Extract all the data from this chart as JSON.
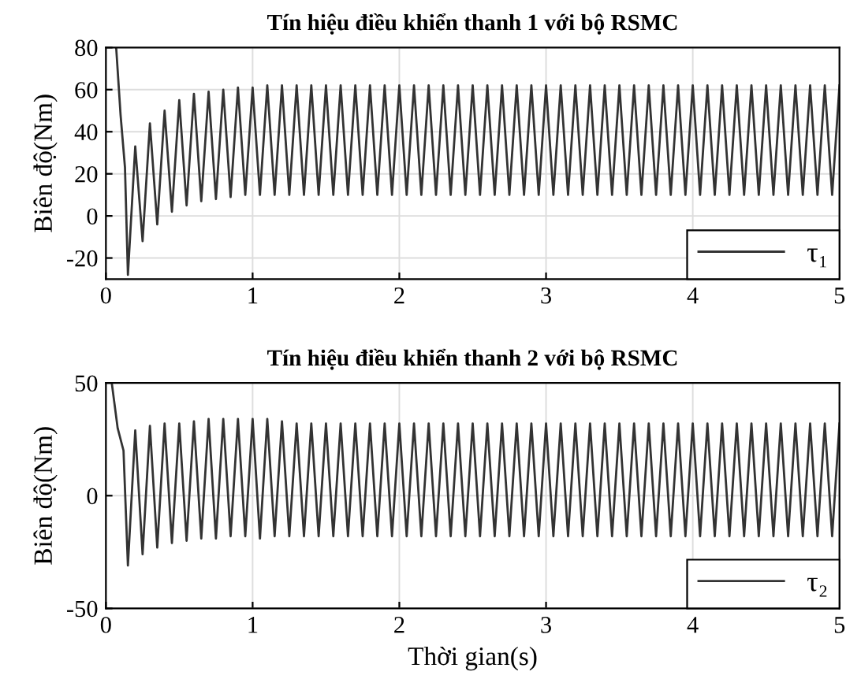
{
  "chart_data": [
    {
      "type": "line",
      "title": "Tín hiệu điều khiển thanh 1 với bộ RSMC",
      "ylabel": "Biên độ(Nm)",
      "xlim": [
        0,
        5
      ],
      "xticks": [
        0,
        1,
        2,
        3,
        4,
        5
      ],
      "ylim": [
        -30,
        80
      ],
      "yticks": [
        -20,
        0,
        20,
        40,
        60,
        80
      ],
      "grid": true,
      "legend": "bottom right",
      "line_style": "solid",
      "series": [
        {
          "name": "τ₁",
          "color": "#333333",
          "x": [
            0.07,
            0.1,
            0.13,
            0.15,
            0.2,
            0.25,
            0.3,
            0.35,
            0.4,
            0.45,
            0.5,
            0.55,
            0.6,
            0.65,
            0.7,
            0.75,
            0.8,
            0.85,
            0.9,
            0.95,
            1,
            1.05,
            1.1,
            1.15,
            1.2,
            1.25,
            1.3,
            1.35,
            1.4,
            1.45,
            1.5,
            1.55,
            1.6,
            1.65,
            1.7,
            1.75,
            1.8,
            1.85,
            1.9,
            1.95,
            2,
            2.05,
            2.1,
            2.15,
            2.2,
            2.25,
            2.3,
            2.35,
            2.4,
            2.45,
            2.5,
            2.55,
            2.6,
            2.65,
            2.7,
            2.75,
            2.8,
            2.85,
            2.9,
            2.95,
            3,
            3.05,
            3.1,
            3.15,
            3.2,
            3.25,
            3.3,
            3.35,
            3.4,
            3.45,
            3.5,
            3.55,
            3.6,
            3.65,
            3.7,
            3.75,
            3.8,
            3.85,
            3.9,
            3.95,
            4,
            4.05,
            4.1,
            4.15,
            4.2,
            4.25,
            4.3,
            4.35,
            4.4,
            4.45,
            4.5,
            4.55,
            4.6,
            4.65,
            4.7,
            4.75,
            4.8,
            4.85,
            4.9,
            4.95,
            5
          ],
          "values": [
            80,
            48,
            23,
            -28,
            33,
            -12,
            44,
            -4,
            50,
            2,
            55,
            5,
            58,
            7,
            59,
            8,
            60,
            9,
            61,
            10,
            61,
            10,
            62,
            10,
            62,
            10,
            62,
            10,
            62,
            10,
            62,
            10,
            62,
            10,
            62,
            10,
            62,
            10,
            62,
            10,
            62,
            10,
            62,
            10,
            62,
            10,
            62,
            10,
            62,
            10,
            62,
            10,
            62,
            10,
            62,
            10,
            62,
            10,
            62,
            10,
            62,
            10,
            62,
            10,
            62,
            10,
            62,
            10,
            62,
            10,
            62,
            10,
            62,
            10,
            62,
            10,
            62,
            10,
            62,
            10,
            62,
            10,
            62,
            10,
            62,
            10,
            62,
            10,
            62,
            10,
            62,
            10,
            62,
            10,
            62,
            10,
            62,
            10,
            62,
            10,
            62
          ]
        }
      ]
    },
    {
      "type": "line",
      "title": "Tín hiệu điều khiển thanh 2 với bộ RSMC",
      "xlabel": "Thời gian(s)",
      "ylabel": "Biên độ(Nm)",
      "xlim": [
        0,
        5
      ],
      "xticks": [
        0,
        1,
        2,
        3,
        4,
        5
      ],
      "ylim": [
        -50,
        50
      ],
      "yticks": [
        -50,
        0,
        50
      ],
      "grid": true,
      "legend": "bottom right",
      "line_style": "solid",
      "series": [
        {
          "name": "τ₂",
          "color": "#333333",
          "x": [
            0.04,
            0.08,
            0.12,
            0.15,
            0.2,
            0.25,
            0.3,
            0.35,
            0.4,
            0.45,
            0.5,
            0.55,
            0.6,
            0.65,
            0.7,
            0.75,
            0.8,
            0.85,
            0.9,
            0.95,
            1,
            1.05,
            1.1,
            1.15,
            1.2,
            1.25,
            1.3,
            1.35,
            1.4,
            1.45,
            1.5,
            1.55,
            1.6,
            1.65,
            1.7,
            1.75,
            1.8,
            1.85,
            1.9,
            1.95,
            2,
            2.05,
            2.1,
            2.15,
            2.2,
            2.25,
            2.3,
            2.35,
            2.4,
            2.45,
            2.5,
            2.55,
            2.6,
            2.65,
            2.7,
            2.75,
            2.8,
            2.85,
            2.9,
            2.95,
            3,
            3.05,
            3.1,
            3.15,
            3.2,
            3.25,
            3.3,
            3.35,
            3.4,
            3.45,
            3.5,
            3.55,
            3.6,
            3.65,
            3.7,
            3.75,
            3.8,
            3.85,
            3.9,
            3.95,
            4,
            4.05,
            4.1,
            4.15,
            4.2,
            4.25,
            4.3,
            4.35,
            4.4,
            4.45,
            4.5,
            4.55,
            4.6,
            4.65,
            4.7,
            4.75,
            4.8,
            4.85,
            4.9,
            4.95,
            5
          ],
          "values": [
            50,
            30,
            20,
            -31,
            29,
            -26,
            31,
            -23,
            32,
            -21,
            32,
            -20,
            33,
            -19,
            34,
            -19,
            34,
            -18,
            34,
            -18,
            34,
            -19,
            34,
            -18,
            33,
            -18,
            32,
            -18,
            32,
            -18,
            32,
            -18,
            32,
            -18,
            32,
            -18,
            32,
            -18,
            32,
            -18,
            32,
            -18,
            32,
            -18,
            32,
            -18,
            32,
            -18,
            32,
            -18,
            32,
            -18,
            32,
            -18,
            32,
            -18,
            32,
            -18,
            32,
            -18,
            32,
            -18,
            32,
            -18,
            32,
            -18,
            32,
            -18,
            32,
            -18,
            32,
            -18,
            32,
            -18,
            32,
            -18,
            32,
            -18,
            32,
            -18,
            32,
            -18,
            32,
            -18,
            32,
            -18,
            32,
            -18,
            32,
            -18,
            32,
            -18,
            32,
            -18,
            32,
            -18,
            32,
            -18,
            32,
            -18,
            32
          ]
        }
      ]
    }
  ]
}
